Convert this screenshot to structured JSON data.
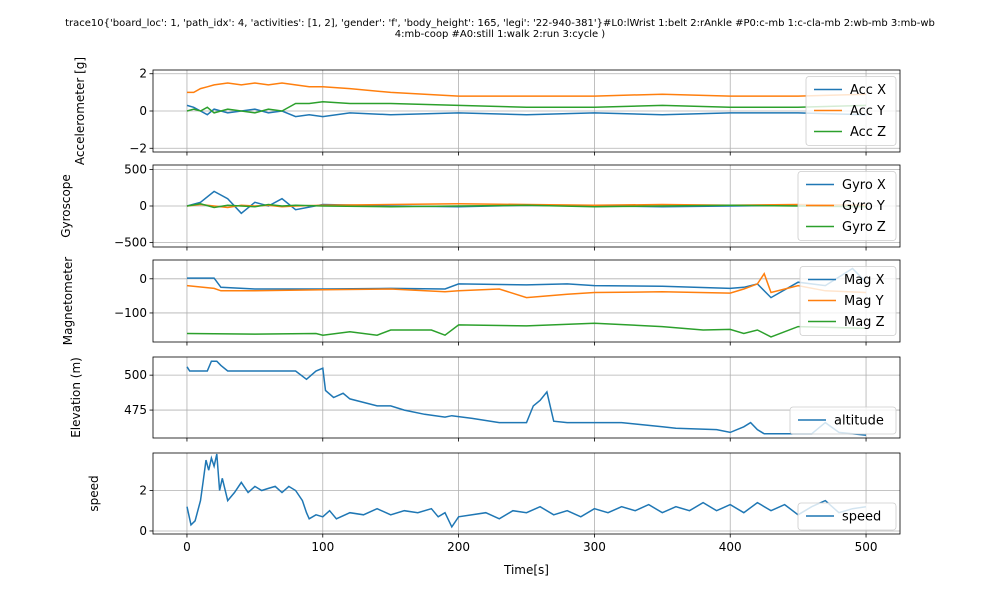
{
  "figure": {
    "title_line1": "trace10{'board_loc': 1, 'path_idx': 4, 'activities': [1, 2], 'gender': 'f', 'body_height': 165, 'legi': '22-940-381'}#L0:lWrist 1:belt 2:rAnkle #P0:c-mb 1:c-cla-mb 2:wb-mb 3:mb-wb",
    "title_line2": "4:mb-coop #A0:still 1:walk 2:run 3:cycle )",
    "xlabel": "Time[s]"
  },
  "colors": {
    "c0": "#1f77b4",
    "c1": "#ff7f0e",
    "c2": "#2ca02c",
    "grid": "#b0b0b0"
  },
  "chart_data": [
    {
      "type": "line",
      "ylabel": "Accelerometer [g]",
      "xlim": [
        -25,
        525
      ],
      "ylim": [
        -2.2,
        2.2
      ],
      "yticks": [
        -2,
        0,
        2
      ],
      "xticks": [
        0,
        100,
        200,
        300,
        400,
        500
      ],
      "legend_placement": "right",
      "grid": true,
      "series": [
        {
          "name": "Acc X",
          "x": [
            0,
            5,
            10,
            15,
            20,
            30,
            40,
            50,
            60,
            70,
            80,
            90,
            100,
            120,
            150,
            200,
            250,
            300,
            350,
            400,
            450,
            500
          ],
          "y": [
            0.3,
            0.2,
            0.0,
            -0.2,
            0.1,
            -0.1,
            0.0,
            0.1,
            -0.1,
            0.0,
            -0.3,
            -0.2,
            -0.3,
            -0.1,
            -0.2,
            -0.1,
            -0.2,
            -0.1,
            -0.2,
            -0.1,
            -0.1,
            -0.2
          ]
        },
        {
          "name": "Acc Y",
          "x": [
            0,
            5,
            10,
            15,
            20,
            30,
            40,
            50,
            60,
            70,
            80,
            90,
            100,
            120,
            150,
            200,
            250,
            300,
            350,
            400,
            450,
            500
          ],
          "y": [
            1.0,
            1.0,
            1.2,
            1.3,
            1.4,
            1.5,
            1.4,
            1.5,
            1.4,
            1.5,
            1.4,
            1.3,
            1.3,
            1.2,
            1.0,
            0.8,
            0.8,
            0.8,
            0.9,
            0.8,
            0.8,
            0.9
          ]
        },
        {
          "name": "Acc Z",
          "x": [
            0,
            5,
            10,
            15,
            20,
            30,
            40,
            50,
            60,
            70,
            80,
            90,
            100,
            120,
            150,
            200,
            250,
            300,
            350,
            400,
            450,
            500
          ],
          "y": [
            0.0,
            0.1,
            0.0,
            0.2,
            -0.1,
            0.1,
            0.0,
            -0.1,
            0.1,
            0.0,
            0.4,
            0.4,
            0.5,
            0.4,
            0.4,
            0.3,
            0.2,
            0.2,
            0.3,
            0.2,
            0.2,
            0.3
          ]
        }
      ]
    },
    {
      "type": "line",
      "ylabel": "Gyroscope",
      "xlim": [
        -25,
        525
      ],
      "ylim": [
        -560,
        560
      ],
      "yticks": [
        -500,
        0,
        500
      ],
      "xticks": [
        0,
        100,
        200,
        300,
        400,
        500
      ],
      "legend_placement": "right",
      "grid": true,
      "series": [
        {
          "name": "Gyro X",
          "x": [
            0,
            10,
            20,
            30,
            40,
            50,
            60,
            70,
            80,
            100,
            150,
            200,
            250,
            300,
            350,
            400,
            450,
            500
          ],
          "y": [
            0,
            50,
            200,
            100,
            -100,
            50,
            0,
            100,
            -50,
            20,
            0,
            -10,
            10,
            0,
            -10,
            0,
            10,
            -10
          ]
        },
        {
          "name": "Gyro Y",
          "x": [
            0,
            10,
            20,
            30,
            40,
            50,
            60,
            70,
            80,
            100,
            150,
            200,
            250,
            300,
            350,
            400,
            450,
            500
          ],
          "y": [
            0,
            20,
            0,
            -20,
            10,
            0,
            10,
            -10,
            0,
            10,
            20,
            30,
            20,
            10,
            20,
            10,
            20,
            10
          ]
        },
        {
          "name": "Gyro Z",
          "x": [
            0,
            10,
            20,
            30,
            40,
            50,
            60,
            70,
            80,
            100,
            150,
            200,
            250,
            300,
            350,
            400,
            450,
            500
          ],
          "y": [
            0,
            30,
            -20,
            10,
            0,
            -10,
            20,
            0,
            10,
            0,
            -10,
            0,
            10,
            -10,
            0,
            10,
            0,
            -10
          ]
        }
      ]
    },
    {
      "type": "line",
      "ylabel": "Magnetometer",
      "xlim": [
        -25,
        525
      ],
      "ylim": [
        -185,
        55
      ],
      "yticks": [
        -100,
        0
      ],
      "xticks": [
        0,
        100,
        200,
        300,
        400,
        500
      ],
      "legend_placement": "right",
      "grid": true,
      "series": [
        {
          "name": "Mag X",
          "x": [
            0,
            20,
            25,
            50,
            100,
            150,
            190,
            200,
            250,
            280,
            300,
            350,
            400,
            410,
            420,
            430,
            450,
            470,
            490,
            500
          ],
          "y": [
            2,
            2,
            -25,
            -30,
            -30,
            -28,
            -30,
            -15,
            -18,
            -15,
            -20,
            -22,
            -28,
            -25,
            -15,
            -55,
            -10,
            -20,
            30,
            -10
          ]
        },
        {
          "name": "Mag Y",
          "x": [
            0,
            20,
            25,
            50,
            100,
            150,
            190,
            200,
            230,
            250,
            280,
            300,
            350,
            400,
            410,
            420,
            425,
            430,
            450,
            470,
            500
          ],
          "y": [
            -20,
            -28,
            -35,
            -35,
            -32,
            -30,
            -38,
            -35,
            -30,
            -55,
            -45,
            -40,
            -38,
            -42,
            -30,
            -15,
            15,
            -40,
            -20,
            -35,
            -40
          ]
        },
        {
          "name": "Mag Z",
          "x": [
            0,
            50,
            95,
            100,
            120,
            140,
            150,
            180,
            190,
            200,
            250,
            300,
            350,
            380,
            400,
            410,
            420,
            430,
            450,
            500
          ],
          "y": [
            -160,
            -162,
            -160,
            -165,
            -155,
            -165,
            -150,
            -150,
            -165,
            -135,
            -138,
            -130,
            -140,
            -150,
            -148,
            -160,
            -150,
            -170,
            -140,
            -145
          ]
        }
      ]
    },
    {
      "type": "line",
      "ylabel": "Elevation (m)",
      "xlim": [
        -25,
        525
      ],
      "ylim": [
        455,
        513
      ],
      "yticks": [
        475,
        500
      ],
      "xticks": [
        0,
        100,
        200,
        300,
        400,
        500
      ],
      "legend_placement": "lower right",
      "grid": true,
      "series": [
        {
          "name": "altitude",
          "x": [
            0,
            2,
            15,
            18,
            22,
            25,
            30,
            45,
            80,
            88,
            95,
            100,
            102,
            108,
            115,
            120,
            140,
            150,
            160,
            175,
            190,
            195,
            210,
            230,
            250,
            255,
            260,
            265,
            270,
            280,
            300,
            320,
            330,
            350,
            360,
            390,
            400,
            410,
            415,
            420,
            425,
            440,
            460,
            470,
            480,
            490,
            500
          ],
          "y": [
            506,
            503,
            503,
            510,
            510,
            507,
            503,
            503,
            503,
            497,
            503,
            505,
            489,
            484,
            487,
            483,
            478,
            478,
            475,
            472,
            470,
            471,
            469,
            466,
            466,
            478,
            482,
            488,
            467,
            466,
            466,
            466,
            465,
            463,
            462,
            461,
            459,
            463,
            466,
            461,
            458,
            458,
            458,
            466,
            459,
            458,
            457
          ]
        }
      ]
    },
    {
      "type": "line",
      "ylabel": "speed",
      "xlim": [
        -25,
        525
      ],
      "ylim": [
        -0.15,
        3.85
      ],
      "yticks": [
        0,
        2
      ],
      "xticks": [
        0,
        100,
        200,
        300,
        400,
        500
      ],
      "legend_placement": "lower right",
      "grid": true,
      "series": [
        {
          "name": "speed",
          "x": [
            0,
            3,
            6,
            8,
            10,
            12,
            14,
            16,
            18,
            20,
            22,
            24,
            26,
            30,
            35,
            40,
            45,
            50,
            55,
            60,
            65,
            70,
            75,
            80,
            85,
            88,
            90,
            95,
            100,
            105,
            110,
            120,
            130,
            140,
            150,
            160,
            170,
            180,
            185,
            190,
            195,
            200,
            210,
            220,
            230,
            240,
            250,
            260,
            270,
            280,
            290,
            300,
            310,
            320,
            330,
            340,
            350,
            360,
            370,
            380,
            390,
            400,
            410,
            420,
            430,
            440,
            450,
            460,
            470,
            480,
            490,
            500
          ],
          "y": [
            1.2,
            0.3,
            0.5,
            1.0,
            1.5,
            2.5,
            3.5,
            3.0,
            3.6,
            3.2,
            3.8,
            2.0,
            2.6,
            1.5,
            1.9,
            2.4,
            1.9,
            2.2,
            2.0,
            2.1,
            2.2,
            1.9,
            2.2,
            2.0,
            1.5,
            0.9,
            0.6,
            0.8,
            0.7,
            1.0,
            0.6,
            0.9,
            0.8,
            1.1,
            0.8,
            1.0,
            0.9,
            1.1,
            0.7,
            0.9,
            0.2,
            0.7,
            0.8,
            0.9,
            0.6,
            1.0,
            0.9,
            1.2,
            0.8,
            1.0,
            0.7,
            1.1,
            0.9,
            1.2,
            1.0,
            1.3,
            0.9,
            1.2,
            1.0,
            1.4,
            1.0,
            1.3,
            0.9,
            1.4,
            1.0,
            1.3,
            0.8,
            1.2,
            1.5,
            0.9,
            1.1,
            1.2
          ]
        }
      ]
    }
  ]
}
